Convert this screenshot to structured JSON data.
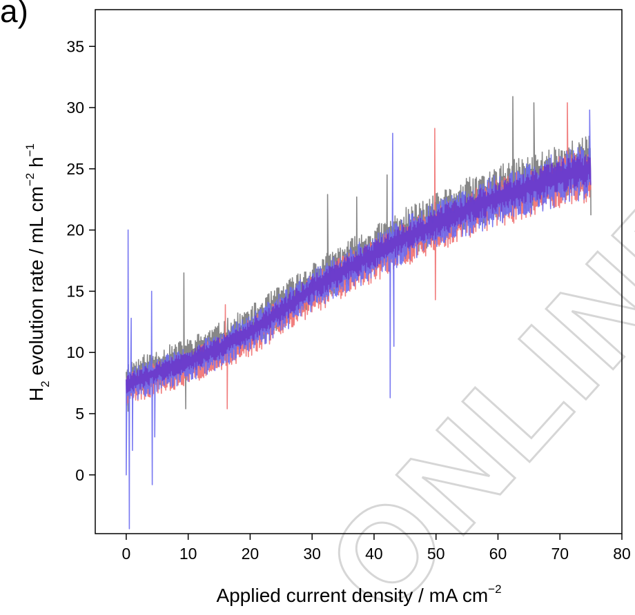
{
  "panel_label": "a)",
  "watermark": "ONLINE",
  "chart_data": {
    "type": "line",
    "title": "",
    "xlabel": {
      "main": "Applied current density / mA cm",
      "sup": "−2"
    },
    "ylabel": {
      "H": "H",
      "sub2": "2",
      "mid": " evolution rate / mL cm",
      "supm2": "−2",
      "h": " h",
      "supm1": "−1"
    },
    "xlim": [
      -5,
      80
    ],
    "ylim": [
      -4.8,
      38
    ],
    "xticks": [
      0,
      10,
      20,
      30,
      40,
      50,
      60,
      70,
      80
    ],
    "yticks": [
      0,
      5,
      10,
      15,
      20,
      25,
      30,
      35
    ],
    "grid": false,
    "legend": "none",
    "series_model": {
      "x_range": [
        0,
        75
      ],
      "trend": "linear-ish increase from about 7 at x=0 to about 25 at x=75 with noisy oscillation",
      "anchors": [
        [
          0,
          7.2
        ],
        [
          5,
          8.2
        ],
        [
          10,
          9.0
        ],
        [
          15,
          10.2
        ],
        [
          20,
          11.5
        ],
        [
          25,
          13.2
        ],
        [
          30,
          15.0
        ],
        [
          35,
          16.5
        ],
        [
          40,
          17.8
        ],
        [
          45,
          19.2
        ],
        [
          50,
          20.3
        ],
        [
          55,
          21.5
        ],
        [
          60,
          22.5
        ],
        [
          65,
          23.3
        ],
        [
          70,
          24.2
        ],
        [
          75,
          24.8
        ]
      ]
    },
    "series": [
      {
        "color": "#7a7a7a",
        "noise_amplitude": 2.4,
        "bias": 0.6,
        "seed": 11,
        "spikes": [
          [
            0.3,
            5.2
          ],
          [
            1.2,
            9.1
          ],
          [
            9.3,
            16.5
          ],
          [
            9.6,
            5.4
          ],
          [
            32.5,
            22.9
          ],
          [
            37.2,
            22.7
          ],
          [
            42.1,
            24.5
          ],
          [
            62.4,
            30.9
          ],
          [
            65.8,
            30.4
          ],
          [
            75,
            21.2
          ]
        ]
      },
      {
        "color": "#f07070",
        "noise_amplitude": 2.2,
        "bias": -0.3,
        "seed": 29,
        "spikes": [
          [
            16.3,
            5.4
          ],
          [
            16.0,
            13.9
          ],
          [
            49.8,
            28.3
          ],
          [
            49.9,
            14.3
          ],
          [
            71.2,
            30.4
          ],
          [
            74.8,
            22.7
          ]
        ]
      },
      {
        "color": "#6b6bf0",
        "noise_amplitude": 2.3,
        "bias": 0.0,
        "seed": 47,
        "spikes": [
          [
            0.0,
            0.0
          ],
          [
            0.3,
            20.0
          ],
          [
            0.5,
            -4.4
          ],
          [
            0.8,
            12.8
          ],
          [
            1.0,
            2.0
          ],
          [
            4.1,
            15.0
          ],
          [
            4.2,
            -0.8
          ],
          [
            4.6,
            3.1
          ],
          [
            42.6,
            6.3
          ],
          [
            43.0,
            27.9
          ],
          [
            43.2,
            10.5
          ],
          [
            74.8,
            29.8
          ]
        ]
      },
      {
        "color": "#6a35c8",
        "noise_amplitude": 1.4,
        "bias": 0.2,
        "seed": 83,
        "spikes": []
      }
    ]
  }
}
